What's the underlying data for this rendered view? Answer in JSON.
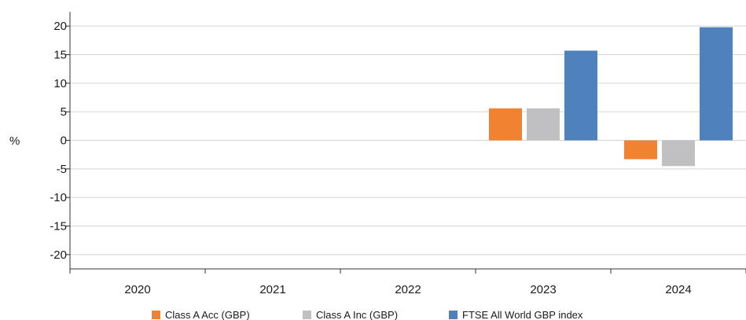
{
  "chart_data": {
    "type": "bar",
    "categories": [
      "2020",
      "2021",
      "2022",
      "2023",
      "2024"
    ],
    "ylabel": "%",
    "ylim": [
      -22.5,
      22.5
    ],
    "yticks": [
      20,
      15,
      10,
      5,
      0,
      -5,
      -10,
      -15,
      -20
    ],
    "grid": true,
    "legend_position": "bottom",
    "series": [
      {
        "name": "Class A Acc (GBP)",
        "color": "#f08232",
        "values": [
          null,
          null,
          null,
          5.6,
          -3.3
        ]
      },
      {
        "name": "Class A Inc (GBP)",
        "color": "#c0c0c2",
        "values": [
          null,
          null,
          null,
          5.6,
          -4.5
        ]
      },
      {
        "name": "FTSE All World GBP index",
        "color": "#4f81bd",
        "values": [
          null,
          null,
          null,
          15.7,
          19.8
        ]
      }
    ]
  }
}
